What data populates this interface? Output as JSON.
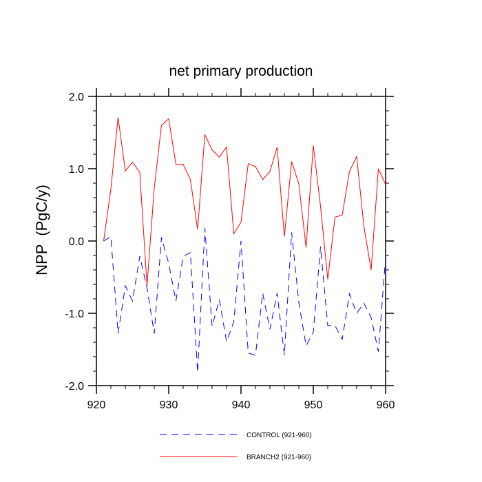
{
  "chart_data": {
    "type": "line",
    "title": "net primary production",
    "xlabel": "",
    "ylabel": "NPP  (PgC/y)",
    "xlim": [
      920,
      960
    ],
    "ylim": [
      -2.0,
      2.0
    ],
    "x_ticks": [
      920,
      930,
      940,
      950,
      960
    ],
    "x_tick_labels": [
      "920",
      "930",
      "940",
      "950",
      "960"
    ],
    "y_ticks": [
      -2.0,
      -1.0,
      0.0,
      1.0,
      2.0
    ],
    "y_tick_labels": [
      "-2.0",
      "-1.0",
      "0.0",
      "1.0",
      "2.0"
    ],
    "grid": false,
    "legend_position": "bottom",
    "x": [
      921,
      922,
      923,
      924,
      925,
      926,
      927,
      928,
      929,
      930,
      931,
      932,
      933,
      934,
      935,
      936,
      937,
      938,
      939,
      940,
      941,
      942,
      943,
      944,
      945,
      946,
      947,
      948,
      949,
      950,
      951,
      952,
      953,
      954,
      955,
      956,
      957,
      958,
      959,
      960
    ],
    "series": [
      {
        "name": "CONTROL (921-960)",
        "color": "#0000ff",
        "dash": "dashed",
        "values": [
          0.0,
          0.06,
          -1.28,
          -0.62,
          -0.83,
          -0.21,
          -0.65,
          -1.28,
          0.05,
          -0.31,
          -0.83,
          -0.21,
          -0.16,
          -1.82,
          0.18,
          -1.18,
          -0.81,
          -1.39,
          -1.12,
          0.0,
          -1.55,
          -1.58,
          -0.72,
          -1.22,
          -0.72,
          -1.58,
          0.12,
          -0.85,
          -1.45,
          -1.26,
          -0.08,
          -1.17,
          -1.17,
          -1.36,
          -0.73,
          -1.0,
          -0.86,
          -1.06,
          -1.53,
          -0.23
        ]
      },
      {
        "name": "BRANCH2 (921-960)",
        "color": "#ff0000",
        "dash": "solid",
        "values": [
          0.0,
          0.72,
          1.71,
          0.97,
          1.09,
          0.95,
          -0.62,
          0.73,
          1.6,
          1.69,
          1.06,
          1.06,
          0.85,
          0.16,
          1.47,
          1.26,
          1.16,
          1.3,
          0.1,
          0.26,
          1.07,
          1.03,
          0.85,
          0.96,
          1.3,
          0.06,
          1.1,
          0.79,
          -0.09,
          1.32,
          0.48,
          -0.53,
          0.33,
          0.36,
          0.96,
          1.17,
          0.2,
          -0.4,
          1.0,
          0.78
        ]
      }
    ]
  }
}
